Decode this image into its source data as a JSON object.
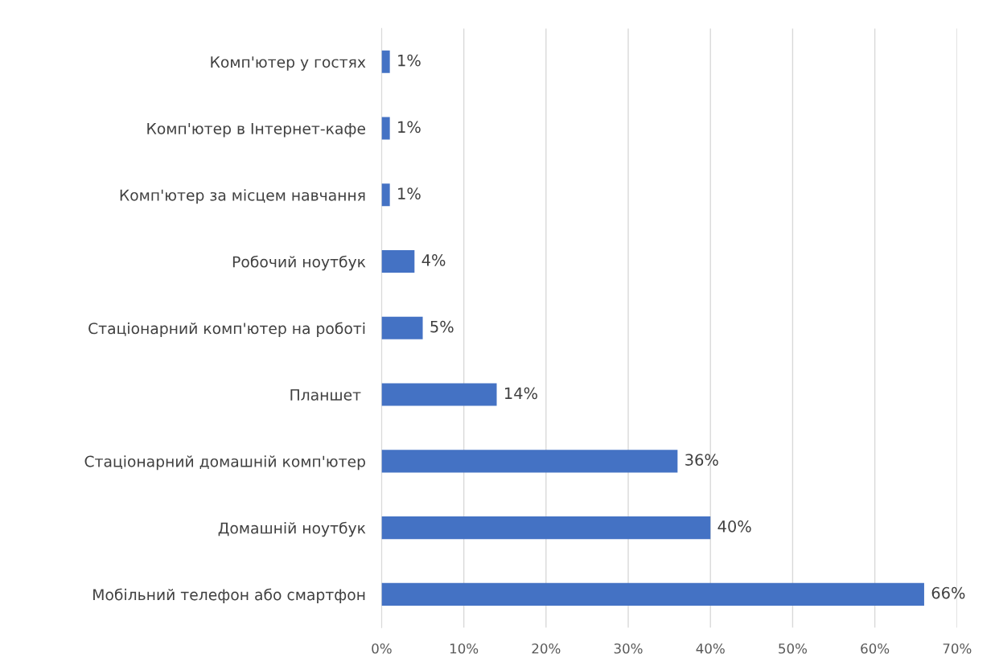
{
  "chart_data": {
    "type": "bar",
    "orientation": "horizontal",
    "categories": [
      "Комп'ютер у гостях",
      "Комп'ютер в Інтернет-кафе",
      "Комп'ютер за місцем навчання",
      "Робочий ноутбук",
      "Стаціонарний комп'ютер на роботі",
      "Планшет ",
      "Стаціонарний домашній комп'ютер",
      "Домашній ноутбук",
      "Мобільний телефон або смартфон"
    ],
    "values": [
      1,
      1,
      1,
      4,
      5,
      14,
      36,
      40,
      66
    ],
    "value_labels": [
      "1%",
      "1%",
      "1%",
      "4%",
      "5%",
      "14%",
      "36%",
      "40%",
      "66%"
    ],
    "color": "#4472c4",
    "xlim": [
      0,
      70
    ],
    "xticks": [
      {
        "value": 0,
        "label": "0%"
      },
      {
        "value": 10,
        "label": "10%"
      },
      {
        "value": 20,
        "label": "20%"
      },
      {
        "value": 30,
        "label": "30%"
      },
      {
        "value": 40,
        "label": "40%"
      },
      {
        "value": 50,
        "label": "50%"
      },
      {
        "value": 60,
        "label": "60%"
      },
      {
        "value": 70,
        "label": "70%"
      }
    ],
    "grid": "x",
    "legend": false
  }
}
